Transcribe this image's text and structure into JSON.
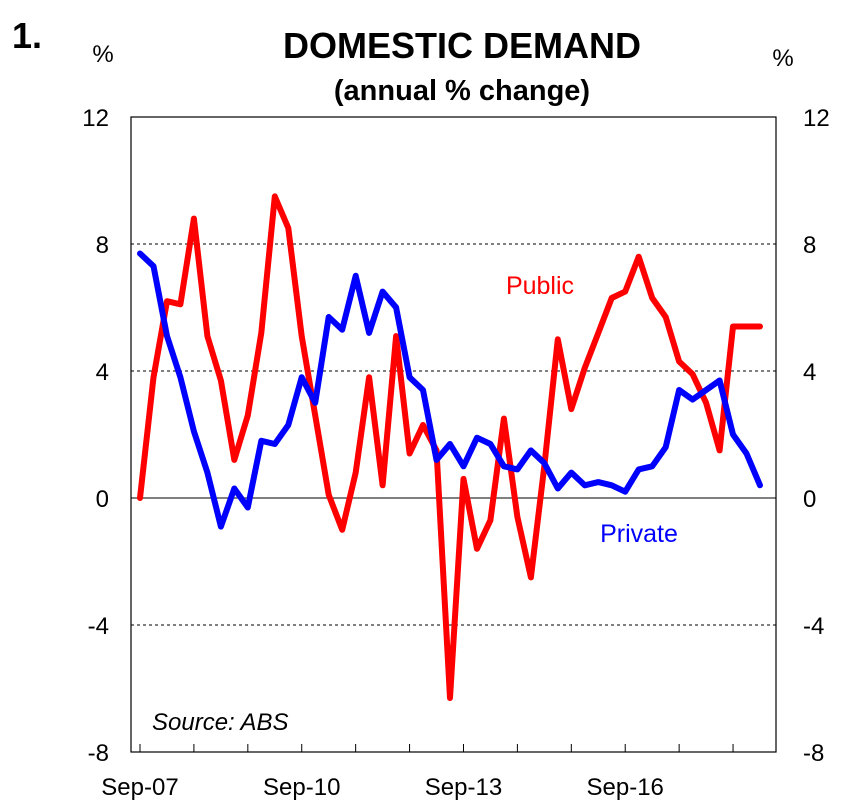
{
  "chart_data": {
    "type": "line",
    "chart_number": "1.",
    "title": "DOMESTIC DEMAND",
    "subtitle": "(annual % change)",
    "left_unit": "%",
    "right_unit": "%",
    "ylim": [
      -8,
      12
    ],
    "y_ticks": [
      "12",
      "8",
      "4",
      "0",
      "-4",
      "-8"
    ],
    "y_tick_values": [
      12,
      8,
      4,
      0,
      -4,
      -8
    ],
    "x_tick_labels": [
      "Sep-07",
      "Sep-10",
      "Sep-13",
      "Sep-16"
    ],
    "x_tick_quarter_index": [
      0,
      12,
      24,
      36
    ],
    "n_quarters": 47,
    "gridlines": "dashed at 4, 8",
    "source": "Source: ABS",
    "colors": {
      "public": "#ff0000",
      "private": "#0000ff",
      "grid": "#000000"
    },
    "series": [
      {
        "name": "Public",
        "label": "Public",
        "color": "#ff0000",
        "values": [
          0.0,
          3.8,
          6.2,
          6.1,
          8.8,
          5.1,
          3.7,
          1.2,
          2.6,
          5.2,
          9.5,
          8.5,
          5.1,
          2.6,
          0.1,
          -1.0,
          0.8,
          3.8,
          0.4,
          5.1,
          1.4,
          2.3,
          1.5,
          -6.3,
          0.6,
          -1.6,
          -0.7,
          2.5,
          -0.6,
          -2.5,
          1.0,
          5.0,
          2.8,
          4.1,
          5.2,
          6.3,
          6.5,
          7.6,
          6.3,
          5.7,
          4.3,
          3.9,
          3.0,
          1.5,
          5.4,
          5.4,
          5.4
        ]
      },
      {
        "name": "Private",
        "label": "Private",
        "color": "#0000ff",
        "values": [
          7.7,
          7.3,
          5.1,
          3.8,
          2.1,
          0.8,
          -0.9,
          0.3,
          -0.3,
          1.8,
          1.7,
          2.3,
          3.8,
          3.0,
          5.7,
          5.3,
          7.0,
          5.2,
          6.5,
          6.0,
          3.8,
          3.4,
          1.2,
          1.7,
          1.0,
          1.9,
          1.7,
          1.0,
          0.9,
          1.5,
          1.1,
          0.3,
          0.8,
          0.4,
          0.5,
          0.4,
          0.2,
          0.9,
          1.0,
          1.6,
          3.4,
          3.1,
          3.4,
          3.7,
          2.0,
          1.4,
          0.4
        ]
      }
    ]
  }
}
